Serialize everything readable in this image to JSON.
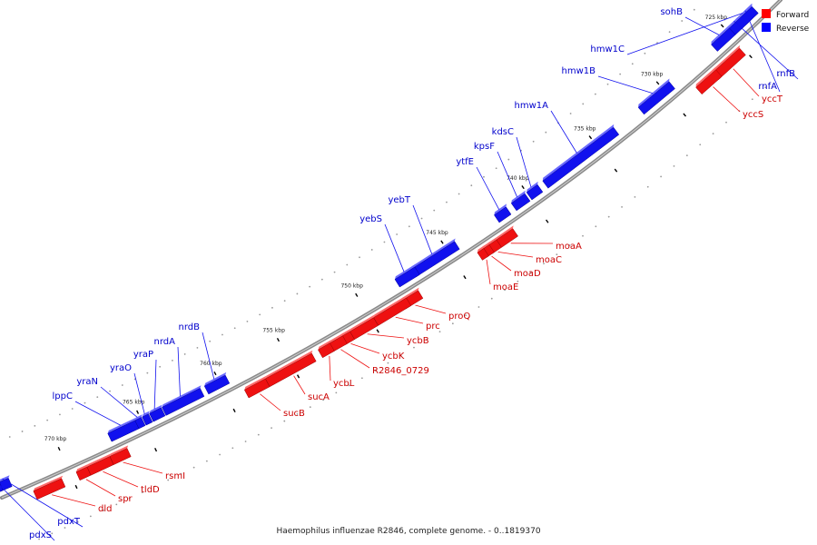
{
  "caption": "Haemophilus influenzae R2846, complete genome. - 0..1819370",
  "legend": [
    {
      "label": "Forward",
      "color": "#ff0000"
    },
    {
      "label": "Reverse",
      "color": "#0000ff"
    }
  ],
  "colors": {
    "forward": "#ee1111",
    "forward_top": "#ff6a6a",
    "reverse": "#1111ee",
    "reverse_top": "#6a6aff",
    "backbone": "#8a8a8a",
    "forward_label": "#cc0000",
    "reverse_label": "#0000cc"
  },
  "ticks": [
    {
      "label": "725 kbp"
    },
    {
      "label": "730 kbp"
    },
    {
      "label": "735 kbp"
    },
    {
      "label": "740 kbp"
    },
    {
      "label": "745 kbp"
    },
    {
      "label": "750 kbp"
    },
    {
      "label": "755 kbp"
    },
    {
      "label": "760 kbp"
    },
    {
      "label": "765 kbp"
    },
    {
      "label": "770 kbp"
    }
  ],
  "genes": [
    {
      "name": "sohB",
      "strand": "reverse"
    },
    {
      "name": "rnfB",
      "strand": "reverse"
    },
    {
      "name": "rnfA",
      "strand": "reverse"
    },
    {
      "name": "yccT",
      "strand": "forward"
    },
    {
      "name": "yccS",
      "strand": "forward"
    },
    {
      "name": "hmw1C",
      "strand": "reverse"
    },
    {
      "name": "hmw1B",
      "strand": "reverse"
    },
    {
      "name": "hmw1A",
      "strand": "reverse"
    },
    {
      "name": "kdsC",
      "strand": "reverse"
    },
    {
      "name": "kpsF",
      "strand": "reverse"
    },
    {
      "name": "ytfE",
      "strand": "reverse"
    },
    {
      "name": "yebT",
      "strand": "reverse"
    },
    {
      "name": "yebS",
      "strand": "reverse"
    },
    {
      "name": "moaA",
      "strand": "forward"
    },
    {
      "name": "moaC",
      "strand": "forward"
    },
    {
      "name": "moaD",
      "strand": "forward"
    },
    {
      "name": "moaE",
      "strand": "forward"
    },
    {
      "name": "proQ",
      "strand": "forward"
    },
    {
      "name": "prc",
      "strand": "forward"
    },
    {
      "name": "ycbB",
      "strand": "forward"
    },
    {
      "name": "ycbK",
      "strand": "forward"
    },
    {
      "name": "R2846_0729",
      "strand": "forward"
    },
    {
      "name": "ycbL",
      "strand": "forward"
    },
    {
      "name": "sucA",
      "strand": "forward"
    },
    {
      "name": "sucB",
      "strand": "forward"
    },
    {
      "name": "nrdB",
      "strand": "reverse"
    },
    {
      "name": "nrdA",
      "strand": "reverse"
    },
    {
      "name": "yraP",
      "strand": "reverse"
    },
    {
      "name": "yraO",
      "strand": "reverse"
    },
    {
      "name": "yraN",
      "strand": "reverse"
    },
    {
      "name": "lppC",
      "strand": "reverse"
    },
    {
      "name": "rsmI",
      "strand": "forward"
    },
    {
      "name": "tldD",
      "strand": "forward"
    },
    {
      "name": "spr",
      "strand": "forward"
    },
    {
      "name": "dld",
      "strand": "forward"
    },
    {
      "name": "pdxT",
      "strand": "reverse"
    },
    {
      "name": "pdxS",
      "strand": "reverse"
    }
  ]
}
